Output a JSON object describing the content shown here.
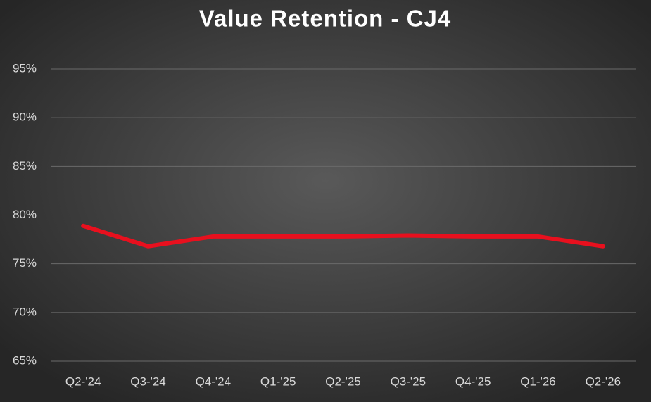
{
  "chart_data": {
    "type": "line",
    "title": "Value Retention - CJ4",
    "categories": [
      "Q2-'24",
      "Q3-'24",
      "Q4-'24",
      "Q1-'25",
      "Q2-'25",
      "Q3-'25",
      "Q4-'25",
      "Q1-'26",
      "Q2-'26"
    ],
    "series": [
      {
        "color": "#e8101e",
        "values": [
          78.9,
          76.8,
          77.8,
          77.8,
          77.8,
          77.9,
          77.8,
          77.8,
          76.8
        ]
      }
    ],
    "ylim": [
      65,
      95
    ],
    "yticks": [
      {
        "value": 65,
        "label": "65%"
      },
      {
        "value": 70,
        "label": "70%"
      },
      {
        "value": 75,
        "label": "75%"
      },
      {
        "value": 80,
        "label": "80%"
      },
      {
        "value": 85,
        "label": "85%"
      },
      {
        "value": 90,
        "label": "90%"
      },
      {
        "value": 95,
        "label": "95%"
      }
    ],
    "grid": true
  }
}
